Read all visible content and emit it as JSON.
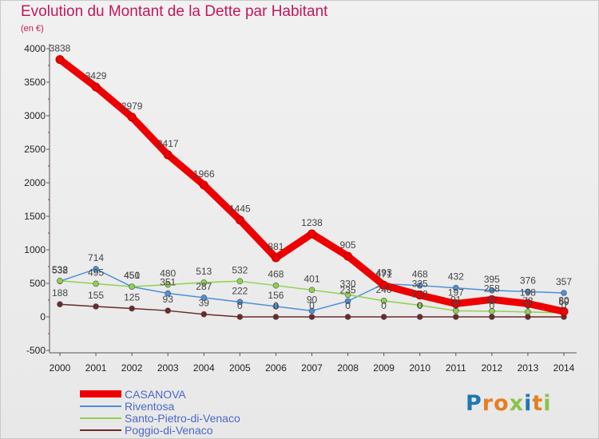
{
  "header": {
    "title": "Evolution du Montant de la Dette par Habitant",
    "subtitle": "(en €)"
  },
  "logo": {
    "letters": [
      "P",
      "r",
      "o",
      "x",
      "i",
      "t",
      "i"
    ],
    "colors": [
      "#1f77b4",
      "#e67e22",
      "#e67e22",
      "#8bc34a",
      "#1f77b4",
      "#e67e22",
      "#8bc34a"
    ]
  },
  "chart_data": {
    "type": "line",
    "title": "Evolution du Montant de la Dette par Habitant",
    "subtitle": "(en €)",
    "xlabel": "",
    "ylabel": "",
    "x": [
      2000,
      2001,
      2002,
      2003,
      2004,
      2005,
      2006,
      2007,
      2008,
      2009,
      2010,
      2011,
      2012,
      2013,
      2014
    ],
    "ylim": [
      -500,
      4000
    ],
    "yticks": [
      -500,
      0,
      500,
      1000,
      1500,
      2000,
      2500,
      3000,
      3500,
      4000
    ],
    "grid": false,
    "legend_position": "bottom-left",
    "series": [
      {
        "name": "CASANOVA",
        "color": "#ee0000",
        "values": [
          3838,
          3429,
          2979,
          2417,
          1966,
          1445,
          881,
          1238,
          905,
          471,
          325,
          197,
          258,
          198,
          80
        ],
        "labels": [
          "3838",
          "3429",
          "2979",
          "2417",
          "1966",
          "1445",
          "881",
          "1238",
          "905",
          "471",
          "325",
          "197",
          "258",
          "198",
          "80"
        ]
      },
      {
        "name": "Riventosa",
        "color": "#4a90d9",
        "values": [
          532,
          714,
          450,
          351,
          287,
          222,
          156,
          90,
          235,
          493,
          468,
          432,
          395,
          376,
          357
        ],
        "labels": [
          "532",
          "714",
          "450",
          "351",
          "287",
          "222",
          "156",
          "90",
          "235",
          "493",
          "468",
          "432",
          "395",
          "376",
          "357"
        ]
      },
      {
        "name": "Santo-Pietro-di-Venaco",
        "color": "#8fd14f",
        "values": [
          538,
          495,
          451,
          480,
          513,
          532,
          468,
          401,
          330,
          240,
          172,
          91,
          85,
          73,
          59
        ],
        "labels": [
          "538",
          "495",
          "451",
          "480",
          "513",
          "532",
          "468",
          "401",
          "330",
          "240",
          "172",
          "91",
          "85",
          "73",
          "59"
        ]
      },
      {
        "name": "Poggio-di-Venaco",
        "color": "#6b2a2a",
        "values": [
          188,
          155,
          125,
          93,
          39,
          0,
          0,
          0,
          0,
          0,
          0,
          0,
          0,
          0,
          0
        ],
        "labels": [
          "188",
          "155",
          "125",
          "93",
          "39",
          "0",
          "0",
          "0",
          "0",
          "0",
          "0",
          "0",
          "0",
          "0",
          "0"
        ]
      }
    ]
  }
}
